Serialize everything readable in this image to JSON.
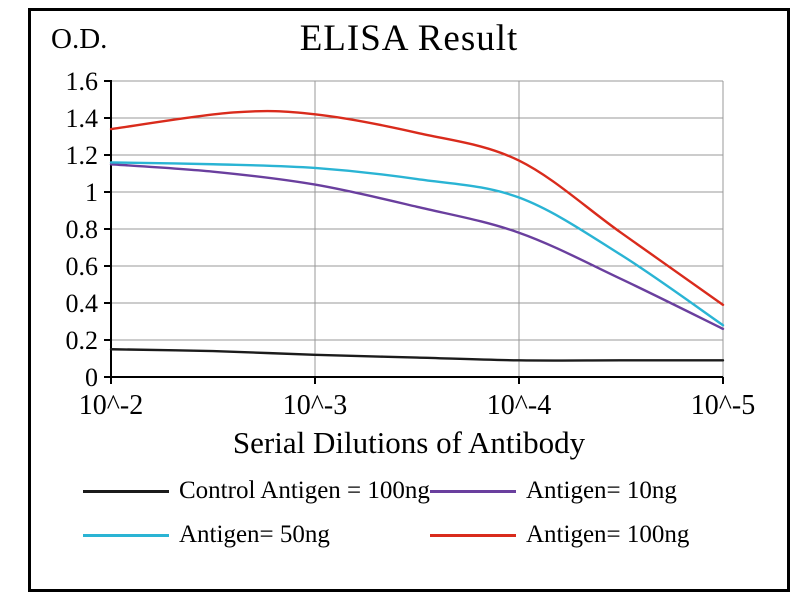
{
  "chart_data": {
    "type": "line",
    "title": "ELISA Result",
    "ylabel": "O.D.",
    "xlabel": "Serial Dilutions of Antibody",
    "categories": [
      "10^-2",
      "10^-3",
      "10^-4",
      "10^-5"
    ],
    "x_ticks": [
      "10^-2",
      "10^-3",
      "10^-4",
      "10^-5"
    ],
    "y_ticks": [
      0,
      0.2,
      0.4,
      0.6,
      0.8,
      1,
      1.2,
      1.4,
      1.6
    ],
    "ylim": [
      0,
      1.6
    ],
    "grid": true,
    "legend_position": "bottom",
    "axis_color": "#000000",
    "grid_color": "#999999",
    "series": [
      {
        "name": "Control Antigen = 100ng",
        "color": "#1b1b1b",
        "values": [
          0.15,
          0.12,
          0.09,
          0.09
        ],
        "points": [
          [
            0,
            0.15
          ],
          [
            0.5,
            0.14
          ],
          [
            1,
            0.12
          ],
          [
            1.5,
            0.105
          ],
          [
            2,
            0.09
          ],
          [
            2.5,
            0.09
          ],
          [
            3,
            0.09
          ]
        ]
      },
      {
        "name": "Antigen= 10ng",
        "color": "#6a3f9e",
        "values": [
          1.15,
          1.04,
          0.78,
          0.26
        ],
        "points": [
          [
            0,
            1.15
          ],
          [
            0.5,
            1.11
          ],
          [
            1,
            1.04
          ],
          [
            1.5,
            0.92
          ],
          [
            2,
            0.78
          ],
          [
            2.5,
            0.53
          ],
          [
            3,
            0.26
          ]
        ]
      },
      {
        "name": "Antigen= 50ng",
        "color": "#2ab4d4",
        "values": [
          1.16,
          1.13,
          0.97,
          0.28
        ],
        "points": [
          [
            0,
            1.16
          ],
          [
            0.5,
            1.15
          ],
          [
            1,
            1.13
          ],
          [
            1.5,
            1.07
          ],
          [
            2,
            0.97
          ],
          [
            2.5,
            0.66
          ],
          [
            3,
            0.28
          ]
        ]
      },
      {
        "name": "Antigen= 100ng",
        "color": "#d92b1c",
        "values": [
          1.34,
          1.42,
          1.17,
          0.39
        ],
        "points": [
          [
            0,
            1.34
          ],
          [
            0.6,
            1.43
          ],
          [
            1,
            1.42
          ],
          [
            1.5,
            1.32
          ],
          [
            2,
            1.17
          ],
          [
            2.5,
            0.78
          ],
          [
            3,
            0.39
          ]
        ]
      }
    ]
  }
}
